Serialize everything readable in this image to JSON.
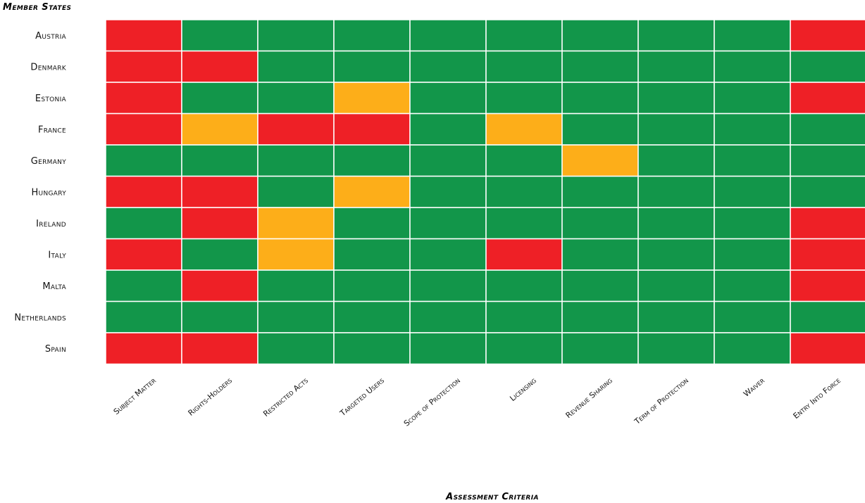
{
  "chart_data": {
    "type": "heatmap",
    "ylabel": "Member States",
    "xlabel": "Assessment Criteria",
    "rows": [
      "Austria",
      "Denmark",
      "Estonia",
      "France",
      "Germany",
      "Hungary",
      "Ireland",
      "Italy",
      "Malta",
      "Netherlands",
      "Spain"
    ],
    "columns": [
      "Subject Matter",
      "Rights-Holders",
      "Restricted Acts",
      "Targeted Users",
      "Scope of Protection",
      "Licensing",
      "Revenue Sharing",
      "Term of Protection",
      "Waiver",
      "Entry Into Force"
    ],
    "status_colors": {
      "red": "#ee2026",
      "amber": "#fdae19",
      "green": "#12964a"
    },
    "values": [
      [
        "red",
        "green",
        "green",
        "green",
        "green",
        "green",
        "green",
        "green",
        "green",
        "red"
      ],
      [
        "red",
        "red",
        "green",
        "green",
        "green",
        "green",
        "green",
        "green",
        "green",
        "green"
      ],
      [
        "red",
        "green",
        "green",
        "amber",
        "green",
        "green",
        "green",
        "green",
        "green",
        "red"
      ],
      [
        "red",
        "amber",
        "red",
        "red",
        "green",
        "amber",
        "green",
        "green",
        "green",
        "green"
      ],
      [
        "green",
        "green",
        "green",
        "green",
        "green",
        "green",
        "amber",
        "green",
        "green",
        "green"
      ],
      [
        "red",
        "red",
        "green",
        "amber",
        "green",
        "green",
        "green",
        "green",
        "green",
        "green"
      ],
      [
        "green",
        "red",
        "amber",
        "green",
        "green",
        "green",
        "green",
        "green",
        "green",
        "red"
      ],
      [
        "red",
        "green",
        "amber",
        "green",
        "green",
        "red",
        "green",
        "green",
        "green",
        "red"
      ],
      [
        "green",
        "red",
        "green",
        "green",
        "green",
        "green",
        "green",
        "green",
        "green",
        "red"
      ],
      [
        "green",
        "green",
        "green",
        "green",
        "green",
        "green",
        "green",
        "green",
        "green",
        "green"
      ],
      [
        "red",
        "red",
        "green",
        "green",
        "green",
        "green",
        "green",
        "green",
        "green",
        "red"
      ]
    ]
  }
}
